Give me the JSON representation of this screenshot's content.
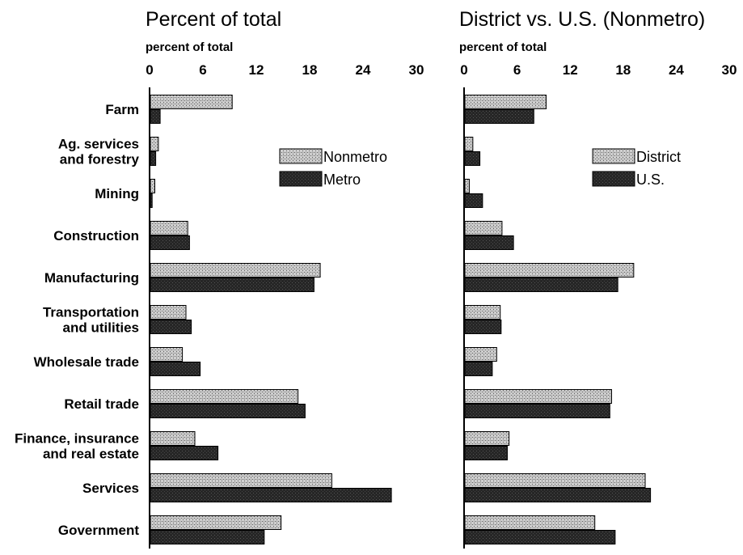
{
  "chart_data": [
    {
      "type": "bar",
      "orientation": "horizontal",
      "title": "Percent of total",
      "unit_label": "percent of total",
      "xlim": [
        0,
        30
      ],
      "ticks": [
        "0",
        "6",
        "12",
        "18",
        "24",
        "30"
      ],
      "legend_position": "top-right",
      "categories": [
        [
          "Farm"
        ],
        [
          "Ag. services",
          "and forestry"
        ],
        [
          "Mining"
        ],
        [
          "Construction"
        ],
        [
          "Manufacturing"
        ],
        [
          "Transportation",
          "and utilities"
        ],
        [
          "Wholesale trade"
        ],
        [
          "Retail trade"
        ],
        [
          "Finance, insurance",
          "and real estate"
        ],
        [
          "Services"
        ],
        [
          "Government"
        ]
      ],
      "series": [
        {
          "name": "Nonmetro",
          "pattern": "hatch",
          "values": [
            9.2,
            0.9,
            0.5,
            4.2,
            19.1,
            4.0,
            3.6,
            16.6,
            5.0,
            20.4,
            14.7
          ]
        },
        {
          "name": "Metro",
          "pattern": "dark",
          "values": [
            1.1,
            0.6,
            0.2,
            4.4,
            18.4,
            4.6,
            5.6,
            17.4,
            7.6,
            27.1,
            12.8
          ]
        }
      ]
    },
    {
      "type": "bar",
      "orientation": "horizontal",
      "title": "District vs. U.S. (Nonmetro)",
      "unit_label": "percent of total",
      "xlim": [
        0,
        30
      ],
      "ticks": [
        "0",
        "6",
        "12",
        "18",
        "24",
        "30"
      ],
      "legend_position": "top-right",
      "series": [
        {
          "name": "District",
          "pattern": "hatch",
          "values": [
            9.2,
            0.9,
            0.5,
            4.2,
            19.1,
            4.0,
            3.6,
            16.6,
            5.0,
            20.4,
            14.7
          ]
        },
        {
          "name": "U.S.",
          "pattern": "dark",
          "values": [
            7.8,
            1.7,
            2.0,
            5.5,
            17.3,
            4.1,
            3.1,
            16.4,
            4.8,
            21.0,
            17.0
          ]
        }
      ]
    }
  ],
  "colors": {
    "hatch_fill": "#c8c8c8",
    "hatch_line": "#5a5a5a",
    "dark_fill": "#2e2e2e",
    "dark_line": "#000000",
    "axis": "#000000"
  }
}
